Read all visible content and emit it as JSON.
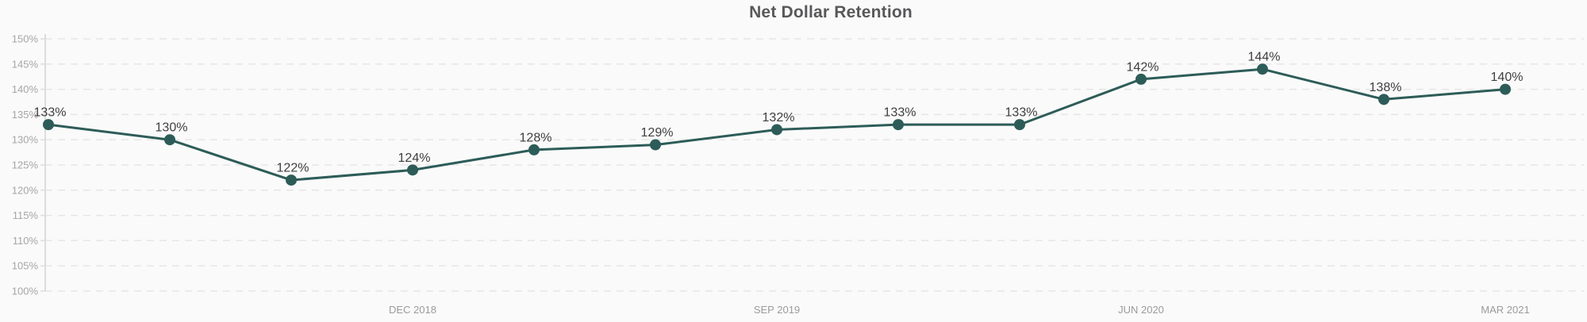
{
  "chart_data": {
    "type": "line",
    "title": "Net Dollar Retention",
    "values": [
      133,
      130,
      122,
      124,
      128,
      129,
      132,
      133,
      133,
      142,
      144,
      138,
      140
    ],
    "point_labels": [
      "133%",
      "130%",
      "122%",
      "124%",
      "128%",
      "129%",
      "132%",
      "133%",
      "133%",
      "142%",
      "144%",
      "138%",
      "140%"
    ],
    "x_ticks": [
      {
        "point_index": 3,
        "label": "DEC 2018"
      },
      {
        "point_index": 6,
        "label": "SEP 2019"
      },
      {
        "point_index": 9,
        "label": "JUN 2020"
      },
      {
        "point_index": 12,
        "label": "MAR 2021"
      }
    ],
    "y_ticks": [
      {
        "value": 150,
        "label": "150%"
      },
      {
        "value": 145,
        "label": "145%"
      },
      {
        "value": 140,
        "label": "140%"
      },
      {
        "value": 135,
        "label": "135%"
      },
      {
        "value": 130,
        "label": "130%"
      },
      {
        "value": 125,
        "label": "125%"
      },
      {
        "value": 120,
        "label": "120%"
      },
      {
        "value": 115,
        "label": "115%"
      },
      {
        "value": 110,
        "label": "110%"
      },
      {
        "value": 105,
        "label": "105%"
      },
      {
        "value": 100,
        "label": "100%"
      }
    ],
    "ylim": [
      100,
      150
    ],
    "grid": "horizontal-dashed",
    "legend": "none",
    "colors": {
      "line": "#2d5c58",
      "point": "#2d5c58",
      "grid": "#e6e6e6",
      "axis": "#dcdcdc",
      "y_tick_label": "#a6a6a6",
      "x_tick_label": "#9b9b9b",
      "point_label": "#3f3f3f",
      "title": "#58585a",
      "background": "#fafafa"
    }
  }
}
